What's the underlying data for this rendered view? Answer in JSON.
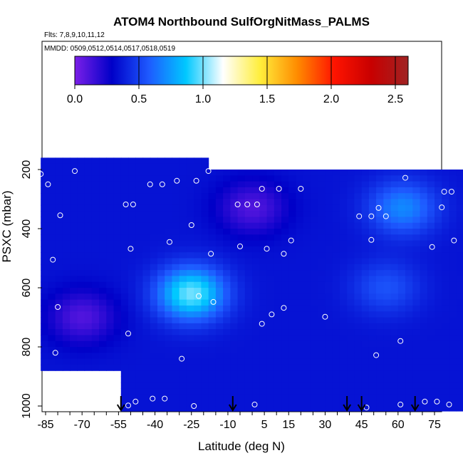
{
  "chart_data": {
    "type": "heatmap",
    "title": "ATOM4 Northbound SulfOrgNitMass_PALMS",
    "subtitle_flights": "Flts: 7,8,9,10,11,12",
    "subtitle_dates": "MMDD: 0509,0512,0514,0517,0518,0519",
    "xlabel": "Latitude (deg N)",
    "ylabel": "PSXC (mbar)",
    "x_ticks": [
      "-85",
      "-70",
      "-55",
      "-40",
      "-25",
      "-10",
      "5",
      "15",
      "30",
      "45",
      "60",
      "75"
    ],
    "y_ticks": [
      "200",
      "400",
      "600",
      "800",
      "1000"
    ],
    "xlim": [
      -87,
      87
    ],
    "ylim": [
      1020,
      0
    ],
    "colorbar": {
      "range": [
        0,
        2.6
      ],
      "tick_labels": [
        "0.0",
        "0.5",
        "1.0",
        "1.5",
        "2.0",
        "2.5"
      ],
      "colors": [
        "#7b1fe8",
        "#0000c8",
        "#1e5aff",
        "#00c8ff",
        "#ffffff",
        "#ffee3c",
        "#ff8c00",
        "#ff1400",
        "#c80000",
        "#a02323"
      ]
    },
    "flight_arrows_lat": [
      -54,
      -8,
      39,
      45,
      67
    ],
    "fill_value": 0.35,
    "field_features": [
      {
        "lat": -25,
        "p": 620,
        "value": 1.0
      },
      {
        "lat": 0,
        "p": 330,
        "value": 0.1
      },
      {
        "lat": 62,
        "p": 330,
        "value": 0.7
      },
      {
        "lat": 55,
        "p": 600,
        "value": 0.55
      },
      {
        "lat": -70,
        "p": 700,
        "value": 0.1
      }
    ],
    "sample_points": [
      {
        "lat": -87,
        "p": 215
      },
      {
        "lat": -84,
        "p": 250
      },
      {
        "lat": -73,
        "p": 205
      },
      {
        "lat": -79,
        "p": 355
      },
      {
        "lat": -82,
        "p": 505
      },
      {
        "lat": -80,
        "p": 665
      },
      {
        "lat": -81,
        "p": 820
      },
      {
        "lat": -52,
        "p": 318
      },
      {
        "lat": -49,
        "p": 318
      },
      {
        "lat": -42,
        "p": 250
      },
      {
        "lat": -37,
        "p": 250
      },
      {
        "lat": -31,
        "p": 238
      },
      {
        "lat": -23,
        "p": 238
      },
      {
        "lat": -18,
        "p": 205
      },
      {
        "lat": -25,
        "p": 388
      },
      {
        "lat": -50,
        "p": 468
      },
      {
        "lat": -34,
        "p": 445
      },
      {
        "lat": -17,
        "p": 485
      },
      {
        "lat": -6,
        "p": 318
      },
      {
        "lat": -2,
        "p": 318
      },
      {
        "lat": 2,
        "p": 318
      },
      {
        "lat": 4,
        "p": 265
      },
      {
        "lat": 11,
        "p": 265
      },
      {
        "lat": 20,
        "p": 265
      },
      {
        "lat": -5,
        "p": 460
      },
      {
        "lat": 6,
        "p": 468
      },
      {
        "lat": 13,
        "p": 485
      },
      {
        "lat": 16,
        "p": 440
      },
      {
        "lat": -22,
        "p": 628
      },
      {
        "lat": -16,
        "p": 648
      },
      {
        "lat": 4,
        "p": 722
      },
      {
        "lat": 8,
        "p": 690
      },
      {
        "lat": 13,
        "p": 668
      },
      {
        "lat": 30,
        "p": 698
      },
      {
        "lat": -51,
        "p": 755
      },
      {
        "lat": -29,
        "p": 840
      },
      {
        "lat": 44,
        "p": 358
      },
      {
        "lat": 49,
        "p": 358
      },
      {
        "lat": 52,
        "p": 330
      },
      {
        "lat": 55,
        "p": 358
      },
      {
        "lat": 49,
        "p": 438
      },
      {
        "lat": 63,
        "p": 228
      },
      {
        "lat": 79,
        "p": 275
      },
      {
        "lat": 82,
        "p": 275
      },
      {
        "lat": 78,
        "p": 328
      },
      {
        "lat": 83,
        "p": 440
      },
      {
        "lat": 74,
        "p": 462
      },
      {
        "lat": 61,
        "p": 780
      },
      {
        "lat": 51,
        "p": 828
      },
      {
        "lat": -51,
        "p": 998
      },
      {
        "lat": -48,
        "p": 985
      },
      {
        "lat": -41,
        "p": 975
      },
      {
        "lat": -36,
        "p": 975
      },
      {
        "lat": -24,
        "p": 1000
      },
      {
        "lat": 1,
        "p": 995
      },
      {
        "lat": 47,
        "p": 1005
      },
      {
        "lat": 61,
        "p": 995
      },
      {
        "lat": 71,
        "p": 985
      },
      {
        "lat": 76,
        "p": 985
      },
      {
        "lat": 81,
        "p": 995
      }
    ]
  }
}
